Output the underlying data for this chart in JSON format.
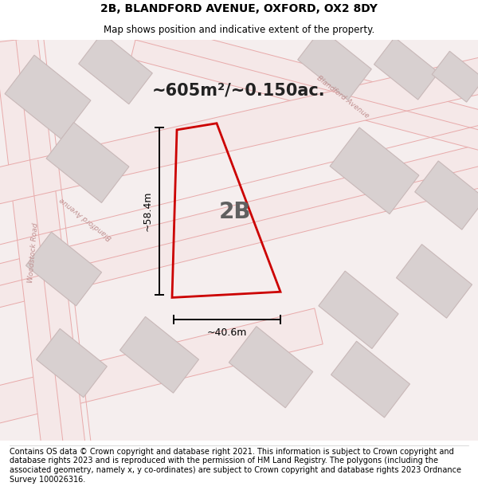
{
  "title": "2B, BLANDFORD AVENUE, OXFORD, OX2 8DY",
  "subtitle": "Map shows position and indicative extent of the property.",
  "area_text": "~605m²/~0.150ac.",
  "dim_width": "~40.6m",
  "dim_height": "~58.4m",
  "label": "2B",
  "footer": "Contains OS data © Crown copyright and database right 2021. This information is subject to Crown copyright and database rights 2023 and is reproduced with the permission of HM Land Registry. The polygons (including the associated geometry, namely x, y co-ordinates) are subject to Crown copyright and database rights 2023 Ordnance Survey 100026316.",
  "bg_color": "#ffffff",
  "map_bg": "#f7f0f0",
  "road_line_color": "#e8aaaa",
  "plot_outline_color": "#cc0000",
  "block_face_color": "#d8d0d0",
  "block_edge_color": "#c8b8b8",
  "road_label_color": "#c09090",
  "title_fontsize": 10,
  "subtitle_fontsize": 8.5,
  "footer_fontsize": 7.0,
  "area_fontsize": 15,
  "label_fontsize": 20,
  "dim_fontsize": 9
}
